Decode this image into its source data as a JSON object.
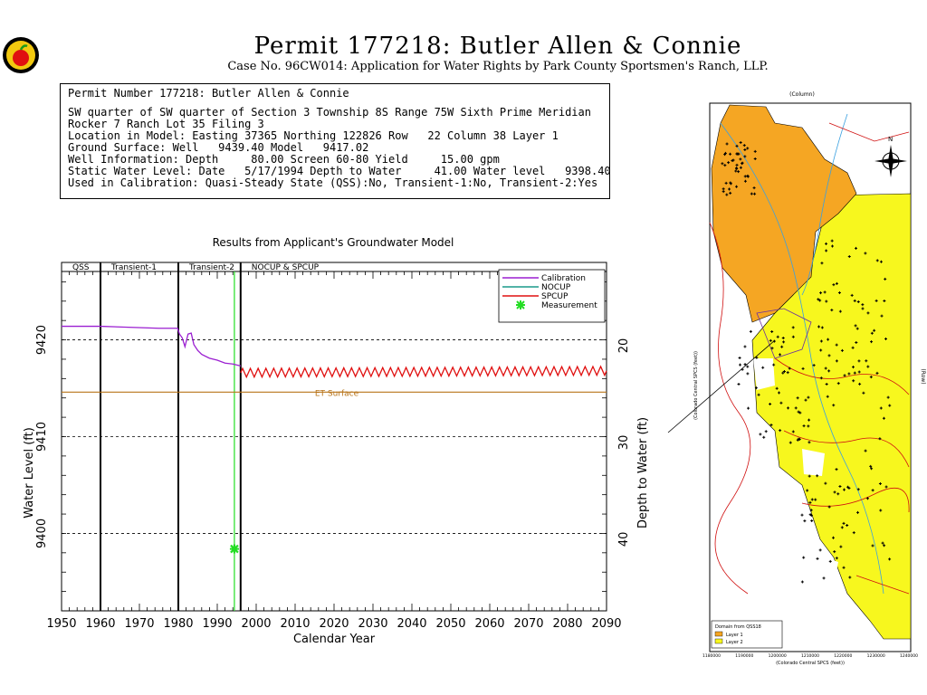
{
  "header": {
    "title": "Permit  177218:   Butler Allen & Connie",
    "subtitle": "Case No. 96CW014: Application for Water Rights by Park County Sportsmen's Ranch, LLP."
  },
  "info": {
    "lines": [
      "Permit Number 177218: Butler Allen & Connie",
      "",
      "SW quarter of SW quarter of Section 3 Township 8S Range 75W Sixth Prime Meridian",
      "Rocker 7 Ranch Lot 35 Filing 3",
      "Location in Model: Easting 37365 Northing 122826 Row   22 Column 38 Layer 1",
      "Ground Surface: Well   9439.40 Model   9417.02",
      "Well Information: Depth     80.00 Screen 60-80 Yield     15.00 gpm",
      "Static Water Level: Date   5/17/1994 Depth to Water     41.00 Water level   9398.40",
      "Used in Calibration: Quasi-Steady State (QSS):No, Transient-1:No, Transient-2:Yes"
    ]
  },
  "chart_data": {
    "type": "line",
    "title": "Results from Applicant's Groundwater Model",
    "xlabel": "Calendar Year",
    "ylabel": "Water Level (ft)",
    "y2label": "Depth to Water (ft)",
    "xlim": [
      1950,
      2090
    ],
    "ylim": [
      9392,
      9428
    ],
    "x_ticks": [
      1950,
      1960,
      1970,
      1980,
      1990,
      2000,
      2010,
      2020,
      2030,
      2040,
      2050,
      2060,
      2070,
      2080,
      2090
    ],
    "y_ticks": [
      9400,
      9410,
      9420
    ],
    "y2_ticks": [
      20,
      30,
      40
    ],
    "ground_surface": 9439.4,
    "periods": [
      {
        "label": "QSS",
        "start": 1950,
        "end": 1960
      },
      {
        "label": "Transient-1",
        "start": 1960,
        "end": 1980
      },
      {
        "label": "Transient-2",
        "start": 1980,
        "end": 1996
      },
      {
        "label": "NOCUP  & SPCUP",
        "start": 1996,
        "end": 2090
      }
    ],
    "period_boundaries": [
      1960,
      1980,
      1996
    ],
    "measurement_date_line": 1994.4,
    "et_surface": {
      "label": "ET Surface",
      "value": 9414.6,
      "color": "#b8741a"
    },
    "series": [
      {
        "name": "Calibration",
        "color": "#9b1fd1",
        "x": [
          1950,
          1960,
          1975,
          1979.8,
          1980.3,
          1981,
          1981.7,
          1982.5,
          1983.3,
          1984,
          1985,
          1986,
          1988,
          1990,
          1992,
          1994,
          1996
        ],
        "y": [
          9421.4,
          9421.4,
          9421.2,
          9421.2,
          9420.6,
          9420.2,
          9419.3,
          9420.6,
          9420.7,
          9419.5,
          9418.9,
          9418.5,
          9418.1,
          9417.9,
          9417.6,
          9417.5,
          9417.3
        ]
      },
      {
        "name": "NOCUP",
        "color": "#1a9a8a",
        "x": [],
        "y": []
      },
      {
        "name": "SPCUP",
        "color": "#e01010",
        "x": [
          1996,
          2090
        ],
        "y": [
          9416.6,
          9416.8
        ],
        "oscillation_amplitude": 0.45
      }
    ],
    "measurement": {
      "name": "Measurement",
      "x": 1994.4,
      "y": 9398.4,
      "color": "#22dd22"
    },
    "grid_lines_y": [
      9400,
      9410,
      9420
    ],
    "legend_position": "top-right"
  },
  "map": {
    "north_label": "N",
    "x_axis_label": "(Colorado Central SPCS (feet))",
    "y_axis_label": "(Colorado Central SPCS (feet))",
    "top_axis_label": "(Column)",
    "right_axis_label": "(Row)",
    "x_ticks": [
      "1180000",
      "1190000",
      "1200000",
      "1210000",
      "1220000",
      "1230000",
      "1240000"
    ],
    "legend_title": "Domain from QSS18",
    "legend_items": [
      {
        "label": "Layer 1",
        "color": "#f5a623"
      },
      {
        "label": "Layer 2",
        "color": "#f7f71e"
      }
    ]
  }
}
